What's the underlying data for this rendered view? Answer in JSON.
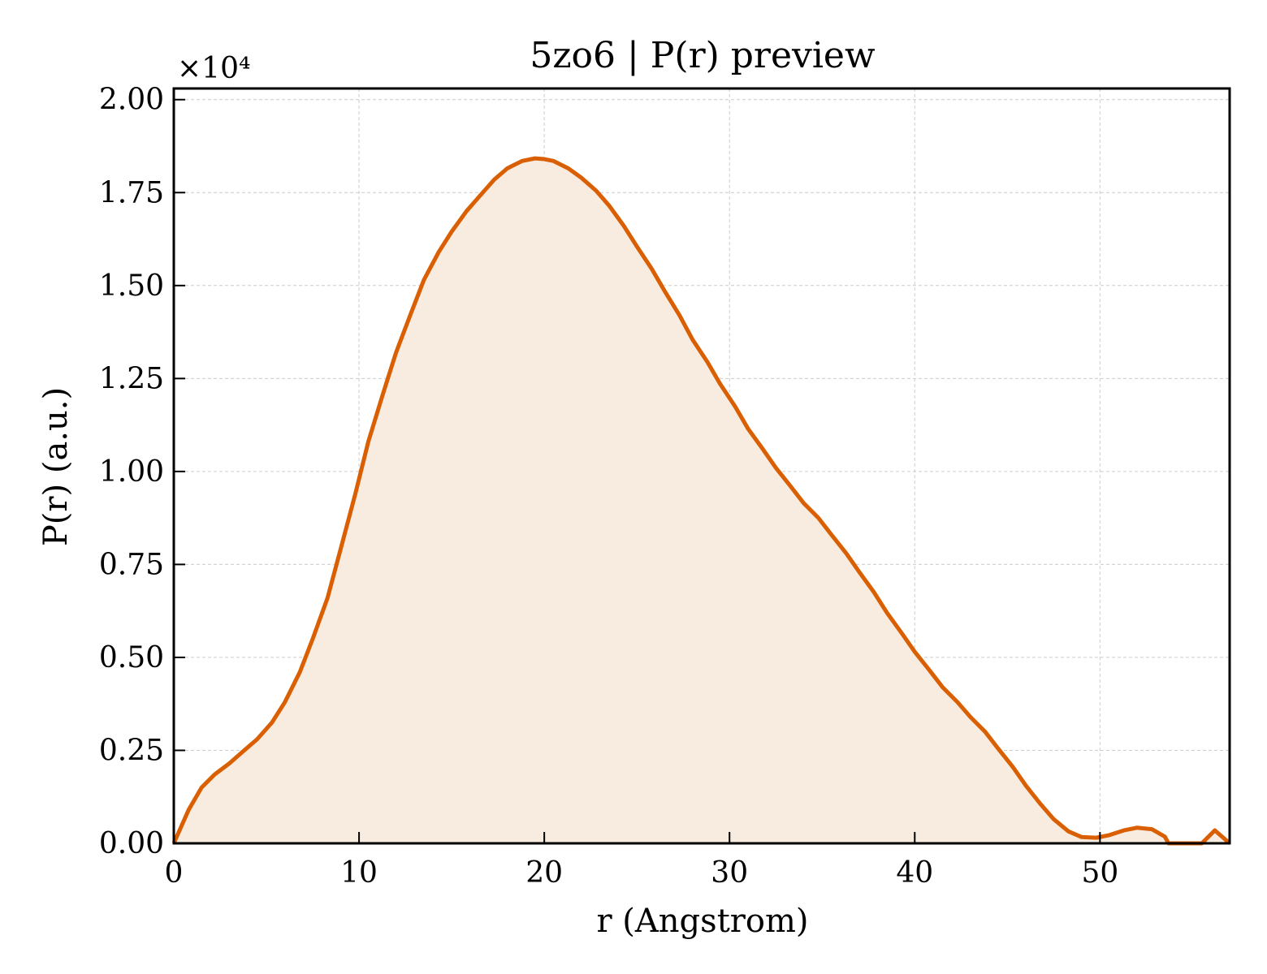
{
  "colors": {
    "line": "#d95f02",
    "fill": "#f8ebe0",
    "grid": "#cccccc",
    "axis": "#000000",
    "background": "#ffffff"
  },
  "chart_data": {
    "type": "area",
    "title": "5zo6 | P(r) preview",
    "xlabel": "r (Angstrom)",
    "ylabel": "P(r) (a.u.)",
    "y_offset_label": "×10⁴",
    "xlim": [
      0,
      57
    ],
    "ylim": [
      0,
      20300
    ],
    "grid": true,
    "xticks": [
      0,
      10,
      20,
      30,
      40,
      50
    ],
    "xtick_labels": [
      "0",
      "10",
      "20",
      "30",
      "40",
      "50"
    ],
    "yticks": [
      0,
      2500,
      5000,
      7500,
      10000,
      12500,
      15000,
      17500,
      20000
    ],
    "ytick_labels": [
      "0.00",
      "0.25",
      "0.50",
      "0.75",
      "1.00",
      "1.25",
      "1.50",
      "1.75",
      "2.00"
    ],
    "series": [
      {
        "x": [
          0,
          0.8,
          1.5,
          2.2,
          3,
          3.8,
          4.5,
          5.3,
          6,
          6.8,
          7.5,
          8.3,
          9,
          9.8,
          10.5,
          11.3,
          12,
          12.8,
          13.5,
          14.3,
          15,
          15.8,
          16.5,
          17.3,
          18,
          18.8,
          19.5,
          20,
          20.5,
          21.3,
          22,
          22.8,
          23.5,
          24.3,
          25,
          25.8,
          26.5,
          27.3,
          28,
          28.8,
          29.5,
          30.3,
          31,
          31.8,
          32.5,
          33.3,
          34,
          34.8,
          35.5,
          36.3,
          37,
          37.8,
          38.5,
          39.3,
          40,
          40.8,
          41.5,
          42.3,
          43,
          43.8,
          44.5,
          45.3,
          46,
          46.8,
          47.5,
          48.3,
          49,
          49.8,
          50.5,
          51.3,
          52,
          52.8,
          53.5,
          53.7,
          55.5,
          56.2,
          57
        ],
        "y": [
          0,
          900,
          1500,
          1850,
          2150,
          2500,
          2800,
          3250,
          3800,
          4600,
          5500,
          6600,
          7900,
          9400,
          10800,
          12100,
          13200,
          14250,
          15150,
          15900,
          16450,
          17000,
          17400,
          17850,
          18150,
          18350,
          18420,
          18400,
          18350,
          18150,
          17900,
          17550,
          17150,
          16600,
          16050,
          15450,
          14850,
          14200,
          13550,
          12950,
          12350,
          11750,
          11150,
          10600,
          10100,
          9600,
          9150,
          8750,
          8300,
          7800,
          7300,
          6750,
          6200,
          5650,
          5150,
          4650,
          4200,
          3800,
          3400,
          3000,
          2550,
          2050,
          1550,
          1050,
          650,
          320,
          170,
          150,
          220,
          350,
          420,
          380,
          180,
          0,
          0,
          350,
          0
        ]
      }
    ]
  }
}
